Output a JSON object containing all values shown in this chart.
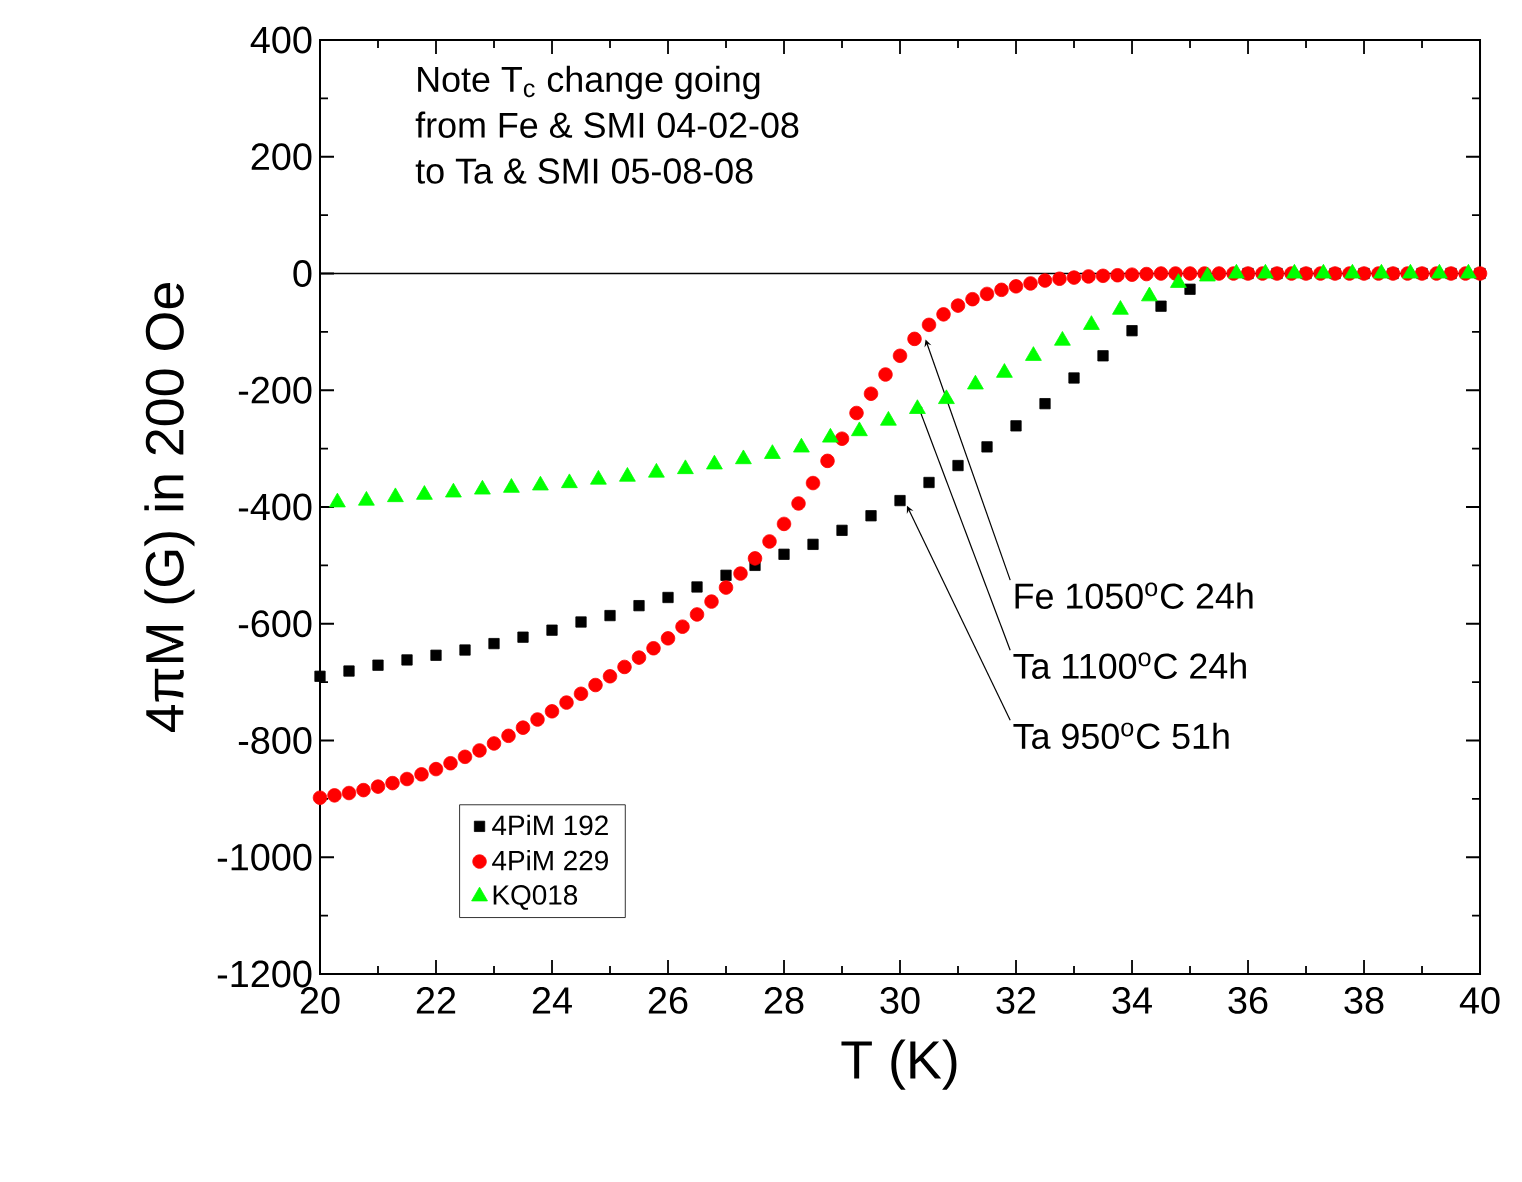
{
  "chart_data": {
    "type": "scatter",
    "xlabel": "T (K)",
    "ylabel": "4πM (G) in 200 Oe",
    "xlim": [
      20,
      40
    ],
    "ylim": [
      -1200,
      400
    ],
    "xticks": [
      20,
      22,
      24,
      26,
      28,
      30,
      32,
      34,
      36,
      38,
      40
    ],
    "yticks": [
      -1200,
      -1000,
      -800,
      -600,
      -400,
      -200,
      0,
      200,
      400
    ],
    "grid": false,
    "legend": "bottom left",
    "series": [
      {
        "name": "4PiM 192",
        "color": "#000000",
        "marker": "square",
        "x": [
          20,
          20.5,
          21,
          21.5,
          22,
          22.5,
          23,
          23.5,
          24,
          24.5,
          25,
          25.5,
          26,
          26.5,
          27,
          27.5,
          28,
          28.5,
          29,
          29.5,
          30,
          30.5,
          31,
          31.5,
          32,
          32.5,
          33,
          33.5,
          34,
          34.5,
          35,
          35.5,
          36,
          36.5,
          37,
          37.5,
          38,
          38.5,
          39,
          39.5,
          40
        ],
        "values": [
          -690,
          -681,
          -671,
          -662,
          -654,
          -645,
          -634,
          -623,
          -611,
          -597,
          -586,
          -569,
          -555,
          -537,
          -517,
          -500,
          -481,
          -464,
          -440,
          -415,
          -389,
          -358,
          -329,
          -297,
          -261,
          -223,
          -179,
          -141,
          -98,
          -56,
          -27,
          null,
          0,
          0,
          0,
          0,
          0,
          0,
          0,
          0,
          0
        ]
      },
      {
        "name": "4PiM 229",
        "color": "#ff0000",
        "marker": "circle",
        "x": [
          20,
          20.25,
          20.5,
          20.75,
          21,
          21.25,
          21.5,
          21.75,
          22,
          22.25,
          22.5,
          22.75,
          23,
          23.25,
          23.5,
          23.75,
          24,
          24.25,
          24.5,
          24.75,
          25,
          25.25,
          25.5,
          25.75,
          26,
          26.25,
          26.5,
          26.75,
          27,
          27.25,
          27.5,
          27.75,
          28,
          28.25,
          28.5,
          28.75,
          29,
          29.25,
          29.5,
          29.75,
          30,
          30.25,
          30.5,
          30.75,
          31,
          31.25,
          31.5,
          31.75,
          32,
          32.25,
          32.5,
          32.75,
          33,
          33.25,
          33.5,
          33.75,
          34,
          34.25,
          34.5,
          34.75,
          35,
          35.25,
          35.5,
          35.75,
          36,
          36.25,
          36.5,
          36.75,
          37,
          37.25,
          37.5,
          37.75,
          38,
          38.25,
          38.5,
          38.75,
          39,
          39.25,
          39.5,
          39.75,
          40
        ],
        "values": [
          -898,
          -894,
          -890,
          -885,
          -879,
          -873,
          -866,
          -858,
          -849,
          -839,
          -828,
          -817,
          -805,
          -792,
          -778,
          -764,
          -750,
          -735,
          -720,
          -705,
          -690,
          -674,
          -658,
          -642,
          -625,
          -605,
          -584,
          -562,
          -538,
          -514,
          -488,
          -459,
          -429,
          -394,
          -359,
          -321,
          -283,
          -239,
          -206,
          -173,
          -141,
          -112,
          -88,
          -70,
          -55,
          -44,
          -35,
          -28,
          -22,
          -17,
          -12,
          -9,
          -7,
          -5,
          -4,
          -3,
          -2,
          -1,
          0,
          0,
          0,
          0,
          0,
          0,
          0,
          0,
          0,
          0,
          0,
          0,
          0,
          0,
          0,
          0,
          0,
          0,
          0,
          0,
          0,
          0,
          0
        ]
      },
      {
        "name": "KQ018",
        "color": "#00ff00",
        "marker": "triangle",
        "x": [
          20.3,
          20.8,
          21.3,
          21.8,
          22.3,
          22.8,
          23.3,
          23.8,
          24.3,
          24.8,
          25.3,
          25.8,
          26.3,
          26.8,
          27.3,
          27.8,
          28.3,
          28.8,
          29.3,
          29.8,
          30.3,
          30.8,
          31.3,
          31.8,
          32.3,
          32.8,
          33.3,
          33.8,
          34.3,
          34.8,
          35.3,
          35.8,
          36.3,
          36.8,
          37.3,
          37.8,
          38.3,
          38.8,
          39.3,
          39.8
        ],
        "values": [
          -392,
          -389,
          -383,
          -379,
          -375,
          -370,
          -367,
          -363,
          -359,
          -353,
          -348,
          -341,
          -335,
          -327,
          -318,
          -309,
          -298,
          -281,
          -270,
          -252,
          -232,
          -215,
          -190,
          -170,
          -141,
          -115,
          -88,
          -62,
          -39,
          -16,
          -5,
          0,
          0,
          0,
          0,
          0,
          0,
          0,
          0,
          0
        ]
      }
    ],
    "ref_lines": [
      {
        "axis": "y",
        "value": 0,
        "color": "#000000"
      }
    ],
    "annotations": [
      "Note T$_{c}$ change going",
      "from Fe & SMI 04-02-08",
      "to Ta & SMI 05-08-08",
      {
        "text": "Fe  1050$^{o}$C 24h",
        "x": 30.44,
        "y": -113
      },
      {
        "text": "Ta  1100$^{o}$C 24h",
        "x": 30.29,
        "y": -221
      },
      {
        "text": "Ta   950$^{o}$C 51h",
        "x": 30.12,
        "y": -398
      }
    ]
  }
}
